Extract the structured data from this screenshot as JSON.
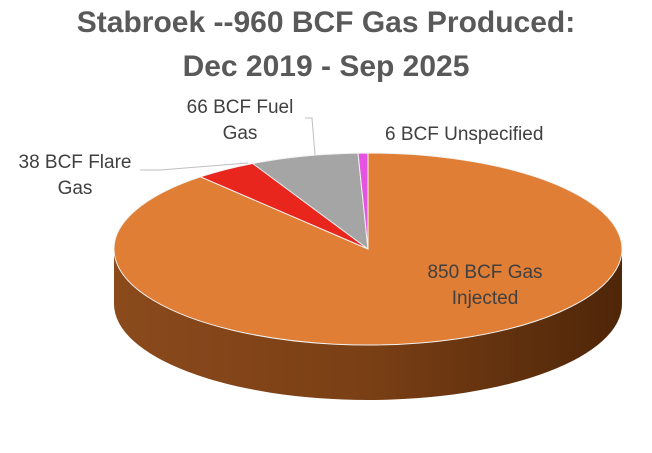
{
  "chart_data": {
    "type": "pie",
    "title_line1": "Stabroek --960 BCF Gas Produced:",
    "title_line2": "Dec 2019 - Sep 2025",
    "slices": [
      {
        "label_line1": "850 BCF Gas",
        "label_line2": "Injected",
        "value": 850,
        "color": "#E07E35"
      },
      {
        "label_line1": "38 BCF Flare",
        "label_line2": "Gas",
        "value": 38,
        "color": "#E8261E"
      },
      {
        "label_line1": "66 BCF Fuel",
        "label_line2": "Gas",
        "value": 66,
        "color": "#A5A5A5"
      },
      {
        "label_line1": "6 BCF Unspecified",
        "label_line2": "",
        "value": 6,
        "color": "#E454E0"
      }
    ],
    "style": "3d"
  }
}
